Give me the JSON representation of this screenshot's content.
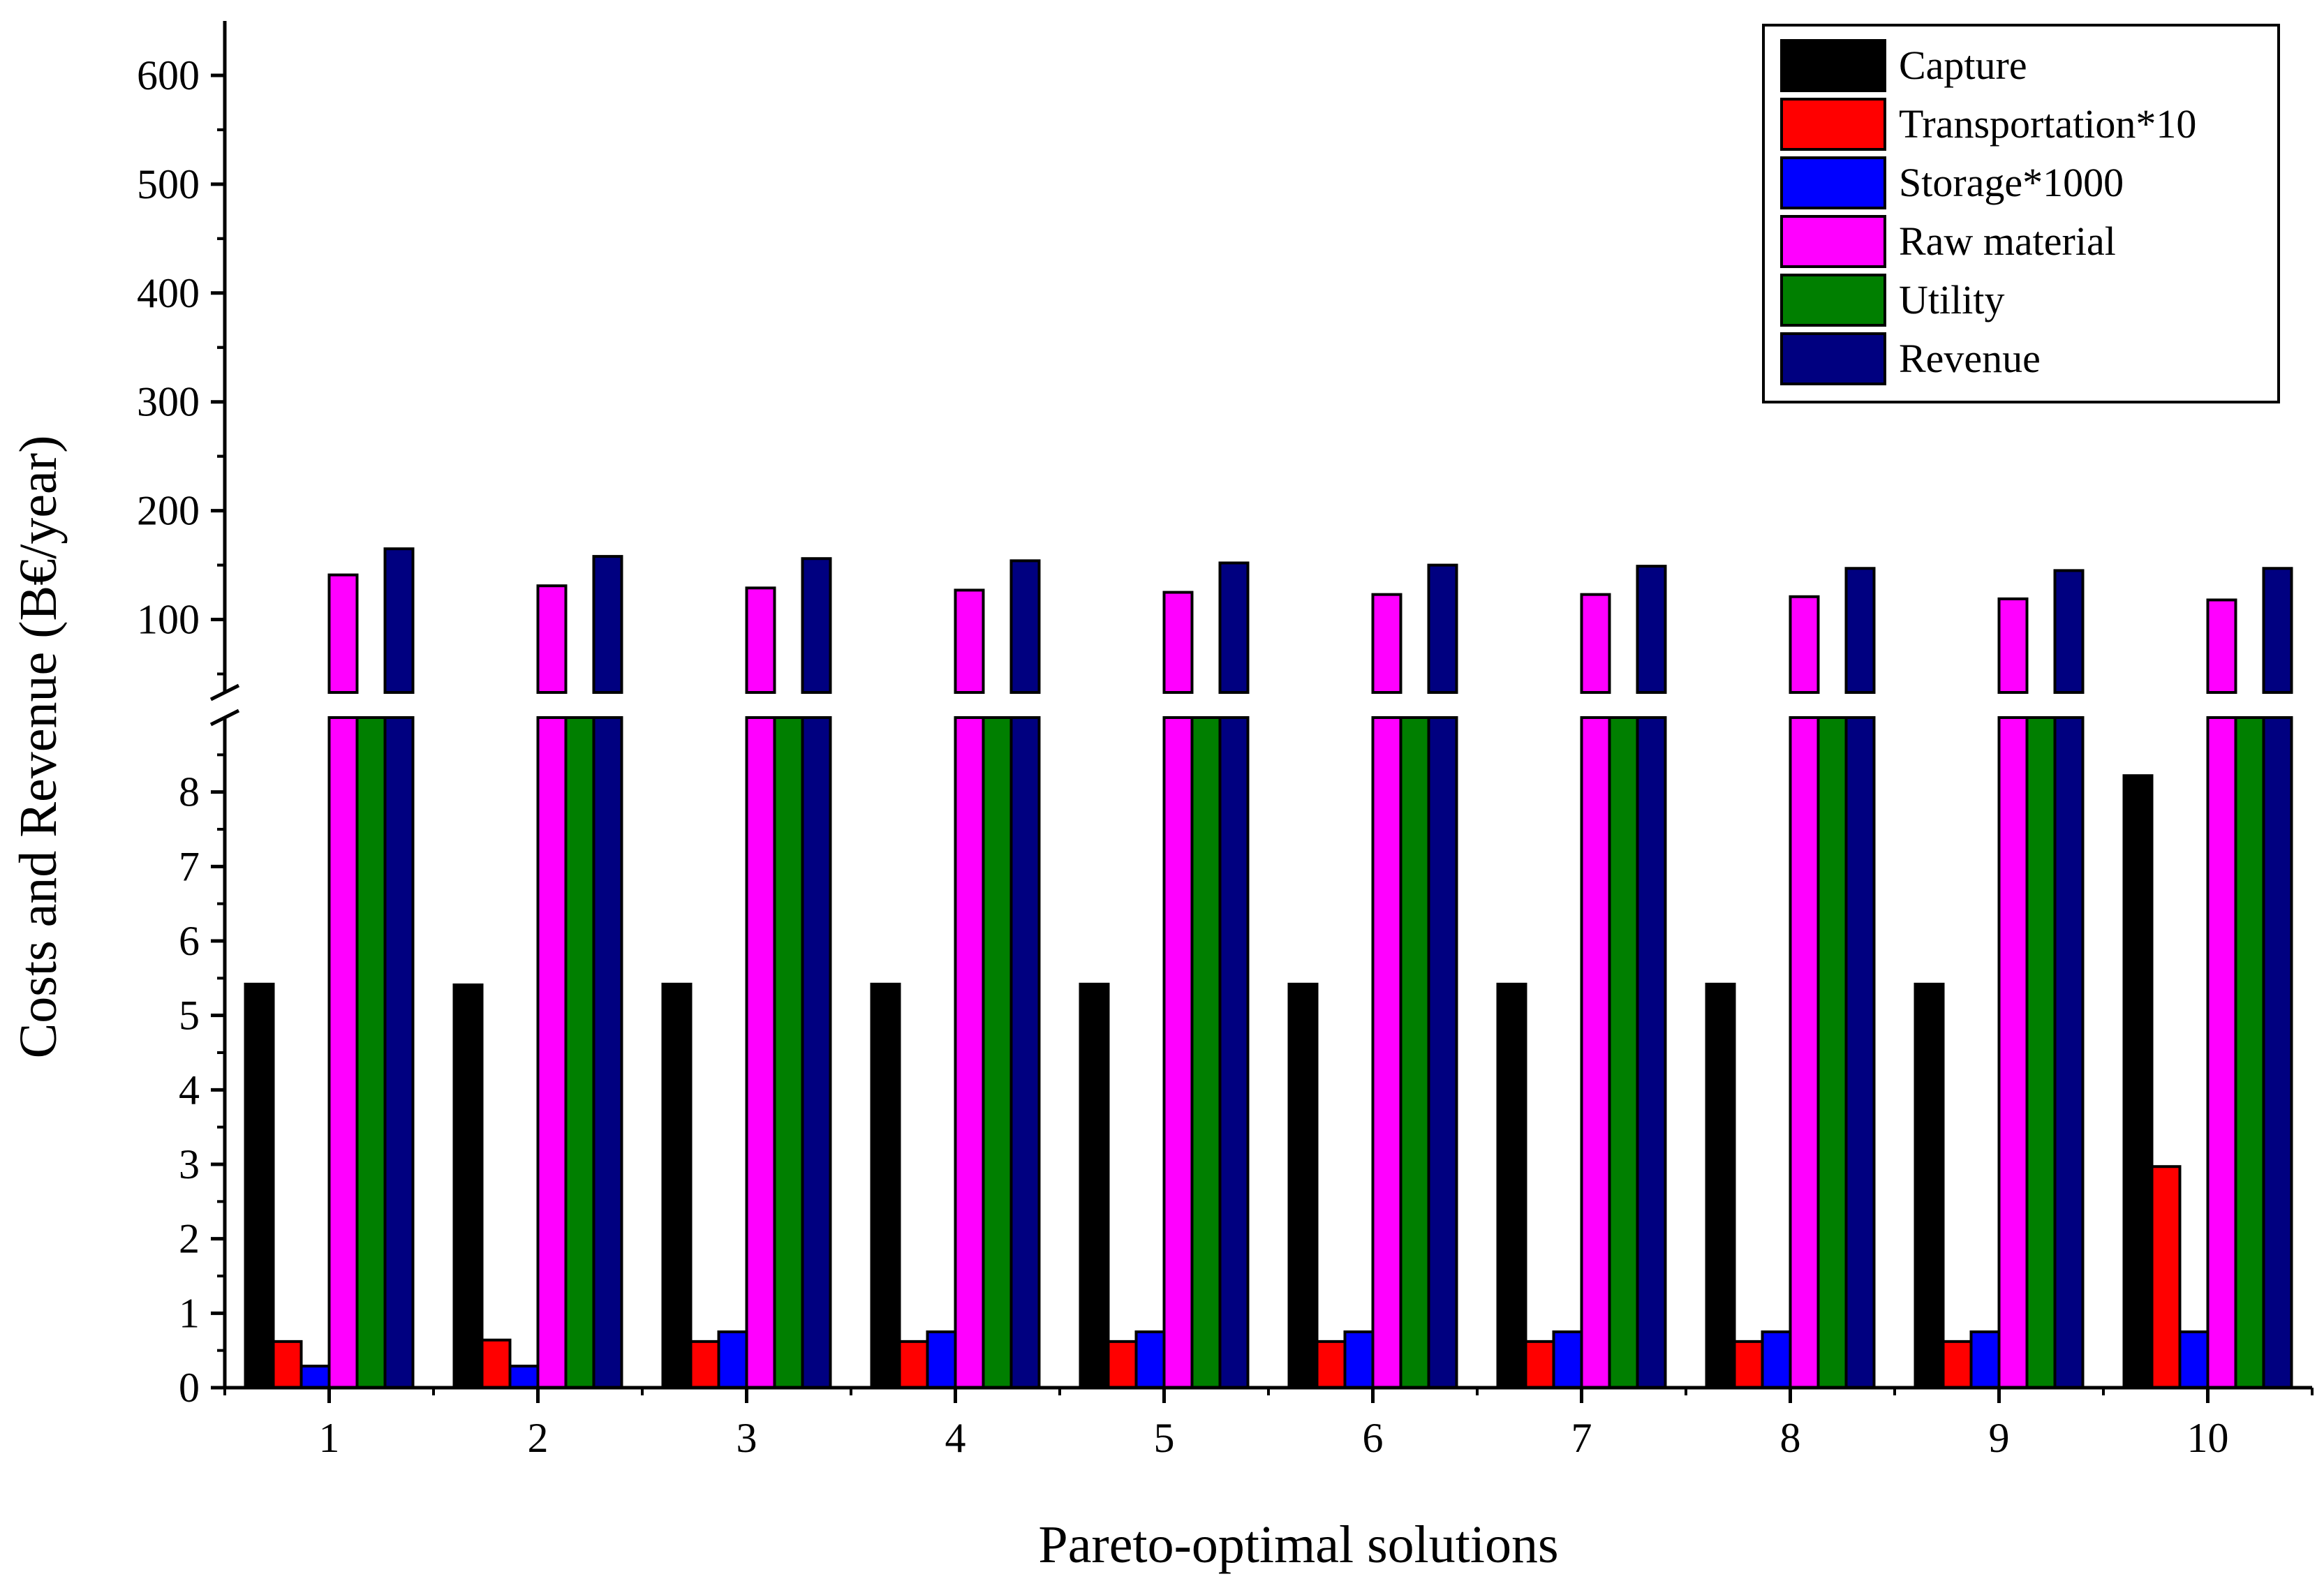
{
  "chart_data": {
    "type": "bar",
    "title": "",
    "xlabel": "Pareto-optimal solutions",
    "ylabel": "Costs and Revenue (B€/year)",
    "categories": [
      "1",
      "2",
      "3",
      "4",
      "5",
      "6",
      "7",
      "8",
      "9",
      "10"
    ],
    "y_break": true,
    "lower_ylim": [
      0,
      9
    ],
    "lower_ticks": [
      "0",
      "1",
      "2",
      "3",
      "4",
      "5",
      "6",
      "7",
      "8"
    ],
    "upper_ylim": [
      33,
      650
    ],
    "upper_ticks": [
      "100",
      "200",
      "300",
      "400",
      "500",
      "600"
    ],
    "legend_position": "top-right",
    "series": [
      {
        "name": "Capture",
        "color": "#000000",
        "values": [
          5.42,
          5.41,
          5.42,
          5.42,
          5.42,
          5.42,
          5.42,
          5.42,
          5.42,
          8.22
        ]
      },
      {
        "name": "Transportation*10",
        "color": "#ff0000",
        "values": [
          0.62,
          0.64,
          0.62,
          0.62,
          0.62,
          0.62,
          0.62,
          0.62,
          0.62,
          2.97
        ]
      },
      {
        "name": "Storage*1000",
        "color": "#0000ff",
        "values": [
          0.29,
          0.29,
          0.75,
          0.75,
          0.75,
          0.75,
          0.75,
          0.75,
          0.75,
          0.75
        ]
      },
      {
        "name": "Raw material",
        "color": "#ff00ff",
        "values": [
          141,
          131,
          129,
          127,
          125,
          123,
          123,
          121,
          119,
          118
        ]
      },
      {
        "name": "Utility",
        "color": "#007f00",
        "values": [
          20,
          20,
          20,
          20,
          20,
          20,
          20,
          20,
          20,
          20
        ]
      },
      {
        "name": "Revenue",
        "color": "#000080",
        "values": [
          165,
          158,
          156,
          154,
          152,
          150,
          149,
          147,
          145,
          147
        ]
      }
    ]
  }
}
